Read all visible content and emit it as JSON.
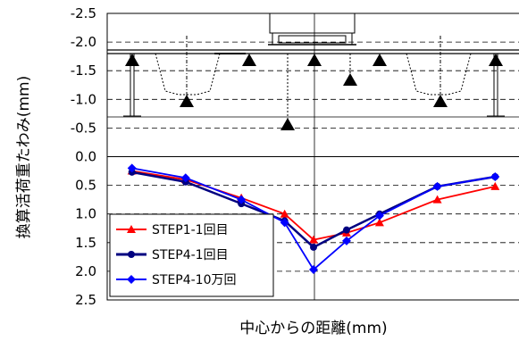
{
  "chart_data": {
    "type": "line",
    "xlabel": "中心からの距離(mm)",
    "ylabel": "換算活荷重たわみ(mm)",
    "ylim": [
      -2.5,
      2.5
    ],
    "y_inverted": true,
    "y_ticks": [
      "-2.5",
      "-2.0",
      "-1.5",
      "-1.0",
      "-0.5",
      "0.0",
      "0.5",
      "1.0",
      "1.5",
      "2.0",
      "2.5"
    ],
    "y_tick_values": [
      -2.5,
      -2.0,
      -1.5,
      -1.0,
      -0.5,
      0.0,
      0.5,
      1.0,
      1.5,
      2.0,
      2.5
    ],
    "x_relative": [
      0.12,
      0.38,
      0.65,
      0.86,
      1.0,
      1.16,
      1.32,
      1.6,
      1.88
    ],
    "legend_position": "bottom-left",
    "grid": "horizontal dashed",
    "series": [
      {
        "name": "STEP1-1回目",
        "color": "#ff0000",
        "marker": "triangle",
        "values": [
          0.25,
          0.4,
          0.72,
          1.0,
          1.45,
          1.33,
          1.15,
          0.75,
          0.52
        ]
      },
      {
        "name": "STEP4-1回目",
        "color": "#000080",
        "marker": "circle",
        "values": [
          0.27,
          0.44,
          0.82,
          1.12,
          1.58,
          1.28,
          1.0,
          0.52,
          0.35
        ]
      },
      {
        "name": "STEP4-10万回",
        "color": "#0000ff",
        "marker": "diamond",
        "values": [
          0.2,
          0.37,
          0.75,
          1.15,
          1.97,
          1.47,
          1.03,
          0.52,
          0.35
        ]
      }
    ]
  }
}
